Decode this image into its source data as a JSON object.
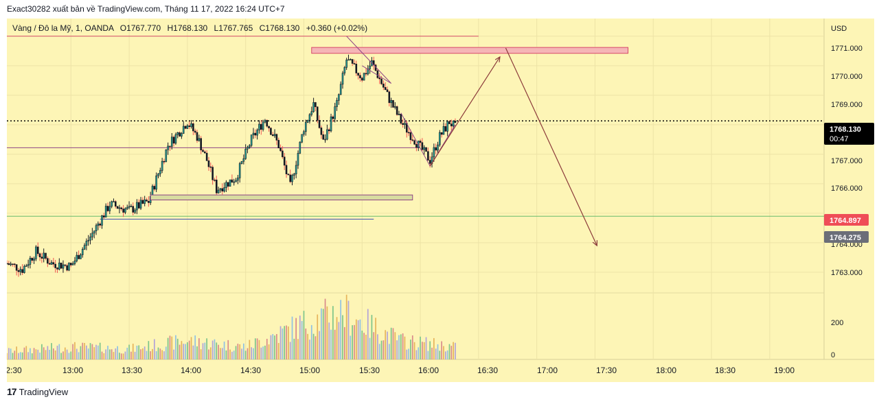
{
  "header": {
    "publisher": "Exact30282 xuất bản về TradingView.com, Tháng 11 17, 2022 16:24 UTC+7"
  },
  "legend": {
    "symbol": "Vàng / Đô la Mỹ, 1, OANDA",
    "open": "O1767.770",
    "high": "H1768.130",
    "low": "L1767.765",
    "close": "C1768.130",
    "change": "+0.360 (+0.02%)"
  },
  "price_axis": {
    "currency": "USD",
    "labels": [
      "1771.000",
      "1770.000",
      "1769.000",
      "1767.000",
      "1766.000",
      "1764.000",
      "1763.000"
    ]
  },
  "volume_axis": {
    "labels": [
      "200",
      "0"
    ]
  },
  "time_axis": {
    "labels": [
      "2:30",
      "13:00",
      "13:30",
      "14:00",
      "14:30",
      "15:00",
      "15:30",
      "16:00",
      "16:30",
      "17:00",
      "17:30",
      "18:00",
      "18:30",
      "19:00"
    ]
  },
  "price_badges": {
    "last": "1768.130",
    "countdown": "00:47",
    "green_level": "1764.897",
    "gray_level": "1764.275"
  },
  "footer": {
    "brand": "TradingView",
    "logo": "17"
  },
  "colors": {
    "background": "#fdf5b6",
    "up": "#26a69a",
    "down": "#ef5350",
    "candle_body": "#131722",
    "resistance_zone": "#f5b6b6",
    "support_zone": "#d8dca0",
    "arrow": "#8b3a3a",
    "green_line": "#66bb6a"
  },
  "chart_data": {
    "type": "candlestick",
    "symbol": "Vàng / Đô la Mỹ, 1, OANDA",
    "y_unit": "USD",
    "ylim": [
      1762.3,
      1771.6
    ],
    "x_range": [
      "12:27",
      "19:28"
    ],
    "last_price": 1768.13,
    "levels": {
      "dotted_last": 1768.13,
      "red_line": 1771.0,
      "purple_line": 1767.22,
      "green_line": 1764.897,
      "gray_badge": 1764.275,
      "blue_line": 1764.8
    },
    "zones": [
      {
        "name": "resistance",
        "from": "15:04",
        "to": "17:47",
        "low": 1770.42,
        "high": 1770.62
      },
      {
        "name": "support",
        "from": "13:41",
        "to": "15:56",
        "low": 1765.45,
        "high": 1765.62
      }
    ],
    "projection_path": [
      {
        "time": "16:05",
        "price": 1766.6
      },
      {
        "time": "16:41",
        "price": 1770.3
      },
      {
        "time": "16:44",
        "price": 1770.6
      },
      {
        "time": "17:31",
        "price": 1763.9
      }
    ],
    "price_path": [
      {
        "time": "12:27",
        "price": 1763.3
      },
      {
        "time": "12:35",
        "price": 1763.1
      },
      {
        "time": "12:42",
        "price": 1763.7
      },
      {
        "time": "12:50",
        "price": 1763.3
      },
      {
        "time": "13:00",
        "price": 1763.2
      },
      {
        "time": "13:10",
        "price": 1764.2
      },
      {
        "time": "13:20",
        "price": 1765.3
      },
      {
        "time": "13:30",
        "price": 1765.1
      },
      {
        "time": "13:40",
        "price": 1765.4
      },
      {
        "time": "13:50",
        "price": 1767.3
      },
      {
        "time": "14:00",
        "price": 1768.1
      },
      {
        "time": "14:05",
        "price": 1767.6
      },
      {
        "time": "14:10",
        "price": 1766.8
      },
      {
        "time": "14:15",
        "price": 1765.8
      },
      {
        "time": "14:25",
        "price": 1766.2
      },
      {
        "time": "14:33",
        "price": 1767.5
      },
      {
        "time": "14:40",
        "price": 1768.2
      },
      {
        "time": "14:47",
        "price": 1767.3
      },
      {
        "time": "14:53",
        "price": 1765.9
      },
      {
        "time": "15:00",
        "price": 1767.9
      },
      {
        "time": "15:05",
        "price": 1768.7
      },
      {
        "time": "15:10",
        "price": 1767.4
      },
      {
        "time": "15:17",
        "price": 1768.7
      },
      {
        "time": "15:22",
        "price": 1770.2
      },
      {
        "time": "15:30",
        "price": 1769.6
      },
      {
        "time": "15:35",
        "price": 1770.1
      },
      {
        "time": "15:43",
        "price": 1769.0
      },
      {
        "time": "15:50",
        "price": 1768.1
      },
      {
        "time": "15:58",
        "price": 1767.4
      },
      {
        "time": "16:05",
        "price": 1766.8
      },
      {
        "time": "16:10",
        "price": 1767.6
      },
      {
        "time": "16:15",
        "price": 1768.1
      },
      {
        "time": "16:18",
        "price": 1767.9
      }
    ],
    "volume_path": [
      {
        "time": "12:27",
        "volume": 40
      },
      {
        "time": "13:00",
        "volume": 60
      },
      {
        "time": "13:30",
        "volume": 50
      },
      {
        "time": "14:00",
        "volume": 90
      },
      {
        "time": "14:30",
        "volume": 60
      },
      {
        "time": "15:00",
        "volume": 170
      },
      {
        "time": "15:20",
        "volume": 230
      },
      {
        "time": "15:30",
        "volume": 180
      },
      {
        "time": "15:50",
        "volume": 90
      },
      {
        "time": "16:18",
        "volume": 60
      }
    ],
    "volume_ylim": [
      0,
      250
    ]
  }
}
